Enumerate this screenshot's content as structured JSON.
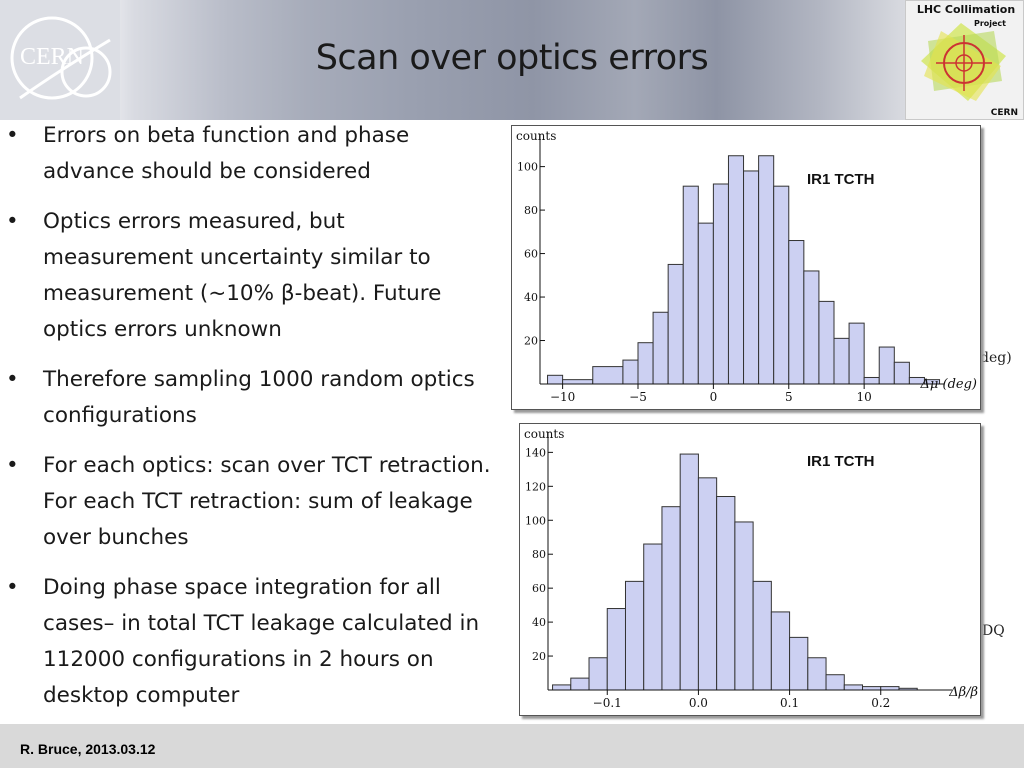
{
  "slide": {
    "title": "Scan over optics errors",
    "footer": "R. Bruce, 2013.03.12",
    "logos": {
      "left": {
        "text": "CERN"
      },
      "right": {
        "line1": "LHC Collimation",
        "line2": "Project",
        "line3": "CERN"
      }
    },
    "bullets": [
      {
        "text": "Errors on beta function and phase advance should be considered"
      },
      {
        "text": "Optics errors measured, but measurement uncertainty similar to measurement (~10% β-beat). Future optics errors unknown"
      },
      {
        "text": "Therefore sampling 1000 random optics configurations"
      },
      {
        "text": "For each optics: scan over TCT retraction. For each TCT retraction: sum of leakage over bunches"
      },
      {
        "text": "Doing phase space integration for all cases– in total TCT leakage calculated in 112000 configurations in 2 hours on desktop computer"
      }
    ],
    "bullet_marker": "•",
    "side_text": {
      "a": "deg)",
      "b": "DQ"
    }
  },
  "chart_data": [
    {
      "type": "bar",
      "annotation": "IR1 TCTH",
      "ylabel": "counts",
      "xlabel": "Δμ (deg)",
      "bin_edges": [
        -11,
        -10,
        -8,
        -6,
        -5,
        -4,
        -3,
        -2,
        -1,
        0,
        1,
        2,
        3,
        4,
        5,
        6,
        7,
        8,
        9,
        10,
        11,
        12,
        13,
        14
      ],
      "values": [
        4,
        2,
        8,
        11,
        19,
        33,
        55,
        91,
        74,
        92,
        105,
        98,
        105,
        91,
        66,
        52,
        38,
        21,
        28,
        3,
        17,
        10,
        3,
        2
      ],
      "xlim": [
        -11.5,
        14.5
      ],
      "ylim": [
        0,
        115
      ],
      "xticks": [
        -10,
        -5,
        0,
        5,
        10
      ],
      "yticks": [
        20,
        40,
        60,
        80,
        100
      ],
      "xtick_labels": [
        "−10",
        "−5",
        "0",
        "5",
        "10"
      ],
      "ytick_labels": [
        "20",
        "40",
        "60",
        "80",
        "100"
      ],
      "fill": "#ccd0f2",
      "stroke": "#333333"
    },
    {
      "type": "bar",
      "annotation": "IR1 TCTH",
      "ylabel": "counts",
      "xlabel": "Δβ/β",
      "bin_edges": [
        -0.16,
        -0.14,
        -0.12,
        -0.1,
        -0.08,
        -0.06,
        -0.04,
        -0.02,
        0.0,
        0.02,
        0.04,
        0.06,
        0.08,
        0.1,
        0.12,
        0.14,
        0.16,
        0.18,
        0.2,
        0.22,
        0.24
      ],
      "values": [
        3,
        7,
        19,
        48,
        64,
        86,
        108,
        139,
        125,
        114,
        99,
        64,
        46,
        31,
        19,
        9,
        3,
        2,
        2,
        1
      ],
      "xlim": [
        -0.165,
        0.265
      ],
      "ylim": [
        0,
        152
      ],
      "xticks": [
        -0.1,
        0.0,
        0.1,
        0.2
      ],
      "yticks": [
        20,
        40,
        60,
        80,
        100,
        120,
        140
      ],
      "xtick_labels": [
        "−0.1",
        "0.0",
        "0.1",
        "0.2"
      ],
      "ytick_labels": [
        "20",
        "40",
        "60",
        "80",
        "100",
        "120",
        "140"
      ],
      "fill": "#ccd0f2",
      "stroke": "#333333"
    }
  ]
}
